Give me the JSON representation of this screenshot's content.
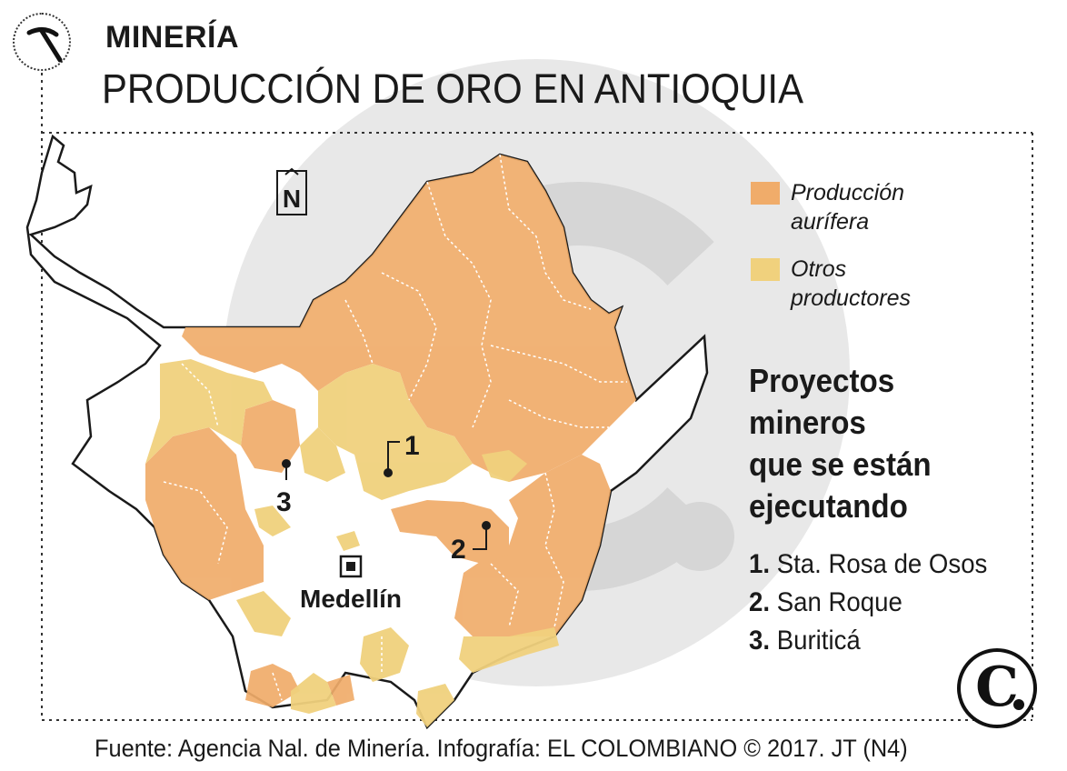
{
  "header": {
    "kicker": "MINERÍA",
    "title": "PRODUCCIÓN DE ORO EN ANTIOQUIA"
  },
  "map": {
    "compass_label": "N",
    "city_label": "Medellín",
    "project_markers": [
      "1",
      "2",
      "3"
    ]
  },
  "legend": [
    {
      "label_line1": "Producción",
      "label_line2": "aurífera",
      "color": "#f0ac6a"
    },
    {
      "label_line1": "Otros",
      "label_line2": "productores",
      "color": "#f0d17d"
    }
  ],
  "projects": {
    "title_lines": [
      "Proyectos",
      "mineros",
      "que se están",
      "ejecutando"
    ],
    "items": [
      {
        "number": "1.",
        "name": "Sta. Rosa de Osos"
      },
      {
        "number": "2.",
        "name": "San Roque"
      },
      {
        "number": "3.",
        "name": "Buriticá"
      }
    ]
  },
  "footer": {
    "source": "Fuente: Agencia Nal. de Minería. Infografía: EL COLOMBIANO © 2017. JT (N4)"
  },
  "icons": [
    "pickaxe-icon",
    "compass-north-icon",
    "medellin-city-icon",
    "el-colombiano-logo-icon"
  ],
  "colors": {
    "gold_production": "#f0ac6a",
    "other_producers": "#f0d17d",
    "watermark": "#e6e6e6",
    "text": "#1a1a1a"
  }
}
